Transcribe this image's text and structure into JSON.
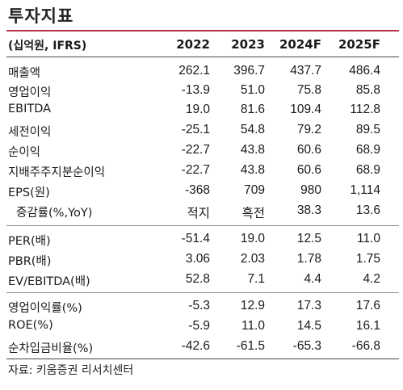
{
  "title": "투자지표",
  "header": {
    "unit": "(십억원, IFRS)",
    "columns": [
      "2022",
      "2023",
      "2024F",
      "2025F"
    ]
  },
  "rows": [
    {
      "label": "매출액",
      "values": [
        "262.1",
        "396.7",
        "437.7",
        "486.4"
      ]
    },
    {
      "label": "영업이익",
      "values": [
        "-13.9",
        "51.0",
        "75.8",
        "85.8"
      ]
    },
    {
      "label": "EBITDA",
      "values": [
        "19.0",
        "81.6",
        "109.4",
        "112.8"
      ]
    },
    {
      "label": "세전이익",
      "values": [
        "-25.1",
        "54.8",
        "79.2",
        "89.5"
      ]
    },
    {
      "label": "순이익",
      "values": [
        "-22.7",
        "43.8",
        "60.6",
        "68.9"
      ]
    },
    {
      "label": "지배주주지분순이익",
      "values": [
        "-22.7",
        "43.8",
        "60.6",
        "68.9"
      ]
    },
    {
      "label": "EPS(원)",
      "values": [
        "-368",
        "709",
        "980",
        "1,114"
      ]
    },
    {
      "label": "증감률(%,YoY)",
      "values": [
        "적지",
        "흑전",
        "38.3",
        "13.6"
      ]
    },
    {
      "label": "PER(배)",
      "values": [
        "-51.4",
        "19.0",
        "12.5",
        "11.0"
      ]
    },
    {
      "label": "PBR(배)",
      "values": [
        "3.06",
        "2.03",
        "1.78",
        "1.75"
      ]
    },
    {
      "label": "EV/EBITDA(배)",
      "values": [
        "52.8",
        "7.1",
        "4.4",
        "4.2"
      ]
    },
    {
      "label": "영업이익률(%)",
      "values": [
        "-5.3",
        "12.9",
        "17.3",
        "17.6"
      ]
    },
    {
      "label": "ROE(%)",
      "values": [
        "-5.9",
        "11.0",
        "14.5",
        "16.1"
      ]
    },
    {
      "label": "순차입금비율(%)",
      "values": [
        "-42.6",
        "-61.5",
        "-65.3",
        "-66.8"
      ]
    }
  ],
  "source": "자료: 키움증권 리서치센터"
}
